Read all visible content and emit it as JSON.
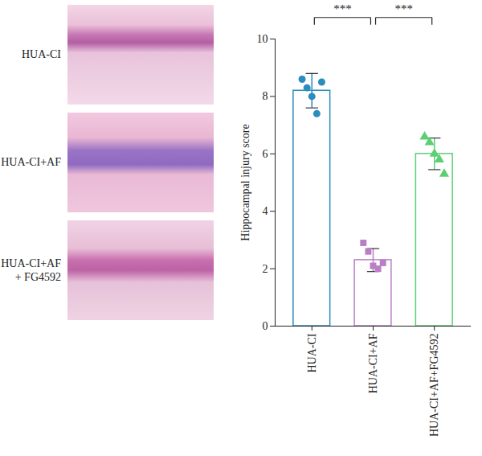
{
  "image_panels": [
    "HUA-CI",
    "HUA-CI+AF",
    "HUA-CI+AF + FG4592"
  ],
  "chart_data": {
    "type": "bar",
    "categories": [
      "HUA-CI",
      "HUA-CI+AF",
      "HUA-CI+AF+FG4592"
    ],
    "values": [
      8.2,
      2.3,
      6.0
    ],
    "errors": [
      0.6,
      0.4,
      0.55
    ],
    "colors": [
      "#2b8cbe",
      "#b97fc6",
      "#5ccf74"
    ],
    "points": [
      {
        "category": "HUA-CI",
        "marker": "circle",
        "values": [
          8.6,
          8.3,
          8.0,
          7.4,
          8.5
        ]
      },
      {
        "category": "HUA-CI+AF",
        "marker": "square",
        "values": [
          2.9,
          2.6,
          2.1,
          2.0,
          2.2
        ]
      },
      {
        "category": "HUA-CI+AF+FG4592",
        "marker": "triangle",
        "values": [
          6.6,
          6.4,
          6.0,
          5.8,
          5.3
        ]
      }
    ],
    "significance": [
      {
        "from": "HUA-CI",
        "to": "HUA-CI+AF",
        "label": "***"
      },
      {
        "from": "HUA-CI+AF",
        "to": "HUA-CI+AF+FG4592",
        "label": "***"
      }
    ],
    "ylabel": "Hippocampal injury score",
    "ylim": [
      0,
      10
    ],
    "yticks": [
      0,
      2,
      4,
      6,
      8,
      10
    ],
    "grid": false
  }
}
